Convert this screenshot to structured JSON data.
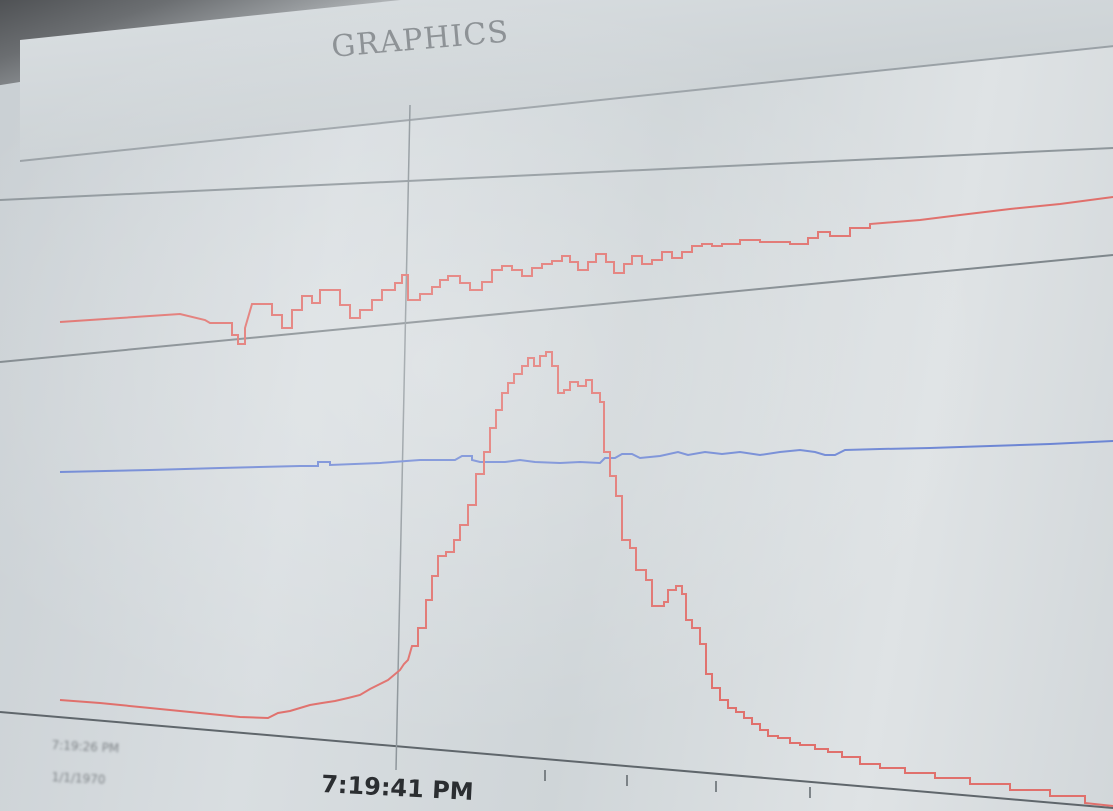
{
  "window": {
    "title": "GRAPHICS"
  },
  "colors": {
    "trace_red": "#e0706c",
    "trace_blue": "#6d86d4",
    "grid": "#7f878c",
    "cursor": "#8e969b"
  },
  "time_axis": {
    "start_time": "7:19:26 PM",
    "start_date": "1/1/1970",
    "cursor_time": "7:19:41 PM"
  }
}
